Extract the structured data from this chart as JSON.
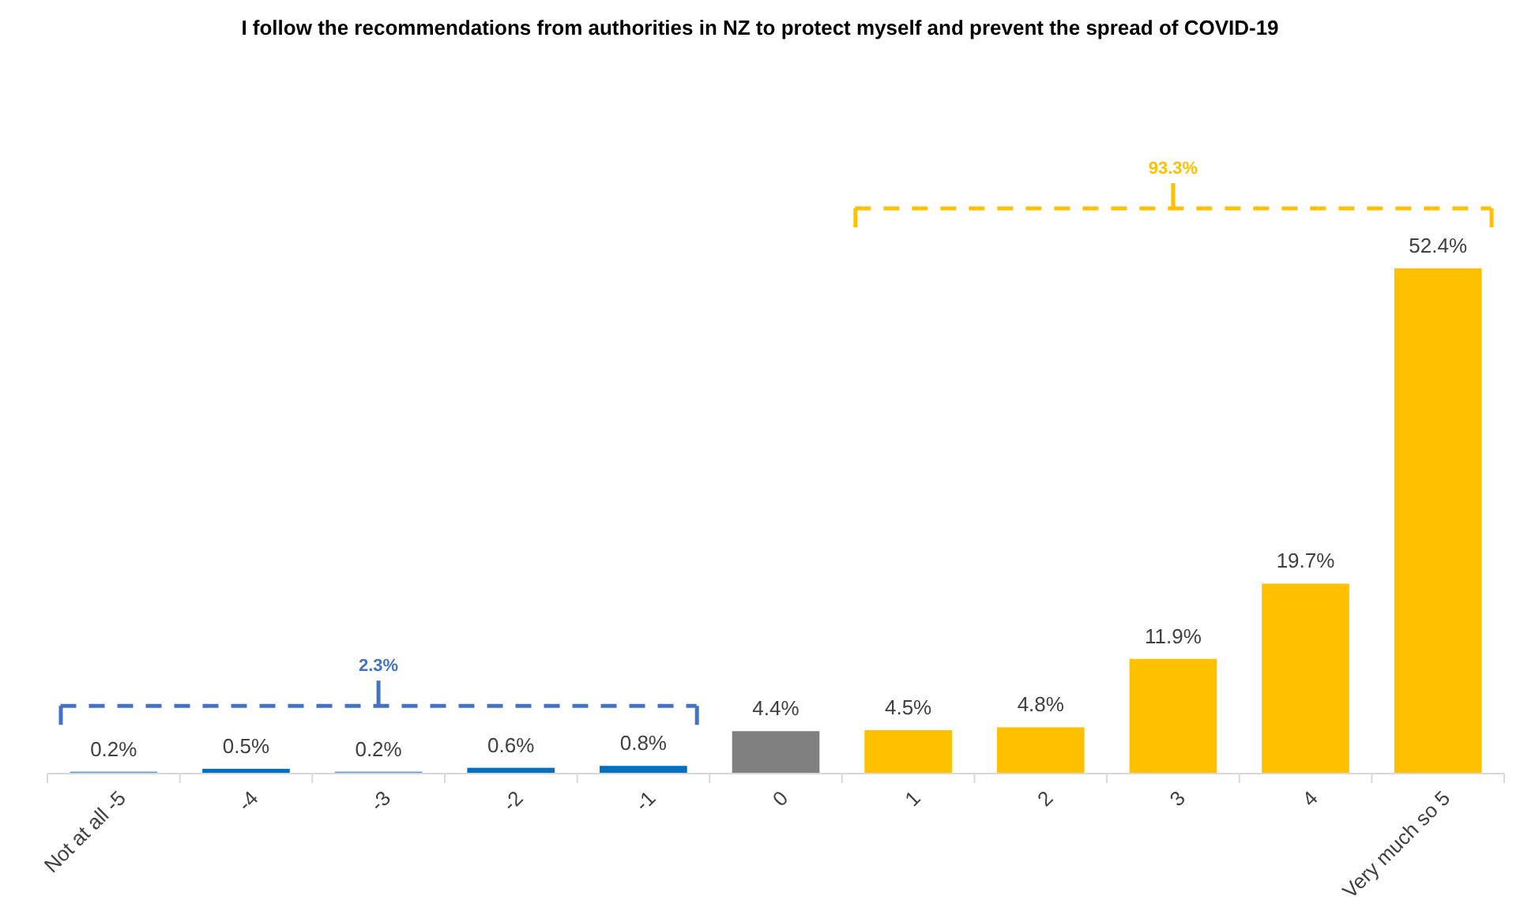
{
  "chart_data": {
    "type": "bar",
    "title": "I follow the recommendations from authorities in NZ to protect myself and prevent the spread of COVID-19",
    "categories": [
      "Not at all -5",
      "-4",
      "-3",
      "-2",
      "-1",
      "0",
      "1",
      "2",
      "3",
      "4",
      "Very much so 5"
    ],
    "values": [
      0.2,
      0.5,
      0.2,
      0.6,
      0.8,
      4.4,
      4.5,
      4.8,
      11.9,
      19.7,
      52.4
    ],
    "value_labels": [
      "0.2%",
      "0.5%",
      "0.2%",
      "0.6%",
      "0.8%",
      "4.4%",
      "4.5%",
      "4.8%",
      "11.9%",
      "19.7%",
      "52.4%"
    ],
    "colors": [
      "#5b9bd5",
      "#0070c0",
      "#5b9bd5",
      "#0070c0",
      "#0070c0",
      "#808080",
      "#ffc000",
      "#ffc000",
      "#ffc000",
      "#ffc000",
      "#ffc000"
    ],
    "annotations": [
      "2.3%",
      "93.3%"
    ]
  }
}
